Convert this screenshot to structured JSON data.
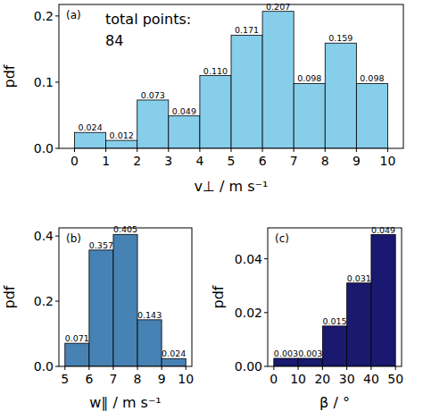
{
  "chart_data": [
    {
      "type": "histogram",
      "xlabel": "v⊥ / m s⁻¹",
      "ylabel": "pdf",
      "annotations": [
        "(a)",
        "total points:",
        "84"
      ],
      "bins": [
        0,
        1,
        2,
        3,
        4,
        5,
        6,
        7,
        8,
        9,
        10
      ],
      "values": [
        0.024,
        0.012,
        0.073,
        0.049,
        0.11,
        0.171,
        0.207,
        0.098,
        0.159,
        0.098
      ],
      "value_labels": [
        "0.024",
        "0.012",
        "0.073",
        "0.049",
        "0.110",
        "0.171",
        "0.207",
        "0.098",
        "0.159",
        "0.098"
      ],
      "data_labels": true,
      "color": "#87ceeb",
      "xlim": [
        -0.5,
        10.5
      ],
      "xticks": [
        0,
        1,
        2,
        3,
        4,
        5,
        6,
        7,
        8,
        9,
        10
      ],
      "ylim": [
        0,
        0.2174
      ],
      "yticks": [
        {
          "value": 0,
          "label": "0.0"
        },
        0.1,
        0.2
      ],
      "grid": false
    },
    {
      "type": "histogram",
      "xlabel": "w∥ / m s⁻¹",
      "ylabel": "pdf",
      "annotations": [
        "(b)"
      ],
      "bins": [
        5,
        6,
        7,
        8,
        9,
        10
      ],
      "values": [
        0.071,
        0.357,
        0.405,
        0.143,
        0.024
      ],
      "value_labels": [
        "0.071",
        "0.357",
        "0.405",
        "0.143",
        "0.024"
      ],
      "data_labels": true,
      "color": "#4682b4",
      "xlim": [
        4.75,
        10.25
      ],
      "xticks": [
        5,
        6,
        7,
        8,
        9,
        10
      ],
      "ylim": [
        0,
        0.425
      ],
      "yticks": [
        {
          "value": 0,
          "label": "0.0"
        },
        0.2,
        0.4
      ],
      "grid": false
    },
    {
      "type": "histogram",
      "xlabel": "β / °",
      "ylabel": "pdf",
      "annotations": [
        "(c)"
      ],
      "bins": [
        0,
        10,
        20,
        30,
        40,
        50
      ],
      "values": [
        0.003,
        0.003,
        0.015,
        0.031,
        0.049
      ],
      "value_labels": [
        "0.003",
        "0.003",
        "0.015",
        "0.031",
        "0.049"
      ],
      "data_labels": true,
      "color": "#191970",
      "xlim": [
        -2.5,
        52.5
      ],
      "xticks": [
        0,
        10,
        20,
        30,
        40,
        50
      ],
      "ylim": [
        0,
        0.0515
      ],
      "yticks": [
        {
          "value": 0,
          "label": "0.00"
        },
        {
          "value": 0.02,
          "label": "0.02"
        },
        {
          "value": 0.04,
          "label": "0.04"
        }
      ],
      "grid": false
    }
  ]
}
